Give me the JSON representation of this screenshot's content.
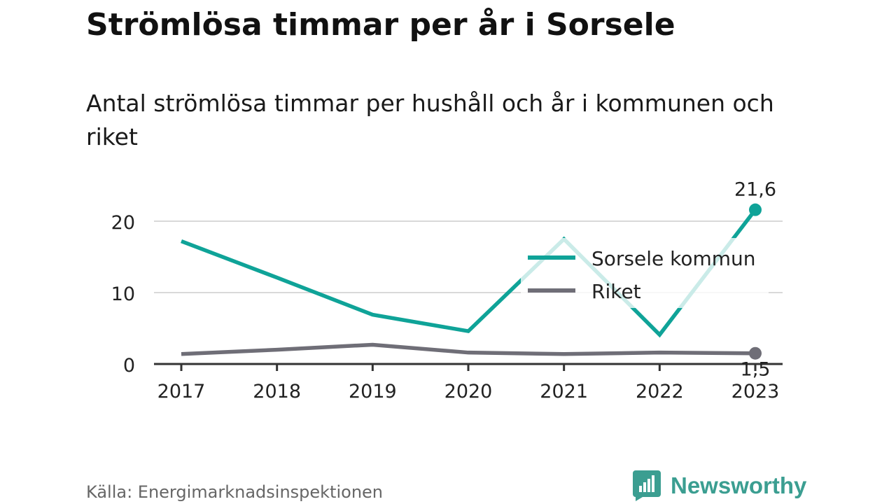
{
  "header": {
    "title": "Strömlösa timmar per år i Sorsele",
    "subtitle": "Antal strömlösa timmar per hushåll och år i kommunen och riket"
  },
  "footer": {
    "source": "Källa: Energimarknadsinspektionen",
    "brand_name": "Newsworthy",
    "brand_icon": "bar-chart-icon"
  },
  "colors": {
    "sorsele": "#0fa398",
    "riket": "#6f6e77",
    "grid": "#d9d9d9",
    "axis": "#333333",
    "brand": "#3b9e91"
  },
  "chart_data": {
    "type": "line",
    "x": [
      "2017",
      "2018",
      "2019",
      "2020",
      "2021",
      "2022",
      "2023"
    ],
    "series": [
      {
        "name": "Sorsele kommun",
        "values": [
          17.2,
          12.1,
          6.9,
          4.6,
          17.5,
          4.1,
          21.6
        ],
        "end_label": "21,6"
      },
      {
        "name": "Riket",
        "values": [
          1.4,
          2.0,
          2.7,
          1.6,
          1.4,
          1.6,
          1.5
        ],
        "end_label": "1,5"
      }
    ],
    "yticks": [
      0,
      10,
      20
    ],
    "ylim": [
      0,
      23
    ],
    "grid": true,
    "legend_position": "top-right"
  }
}
